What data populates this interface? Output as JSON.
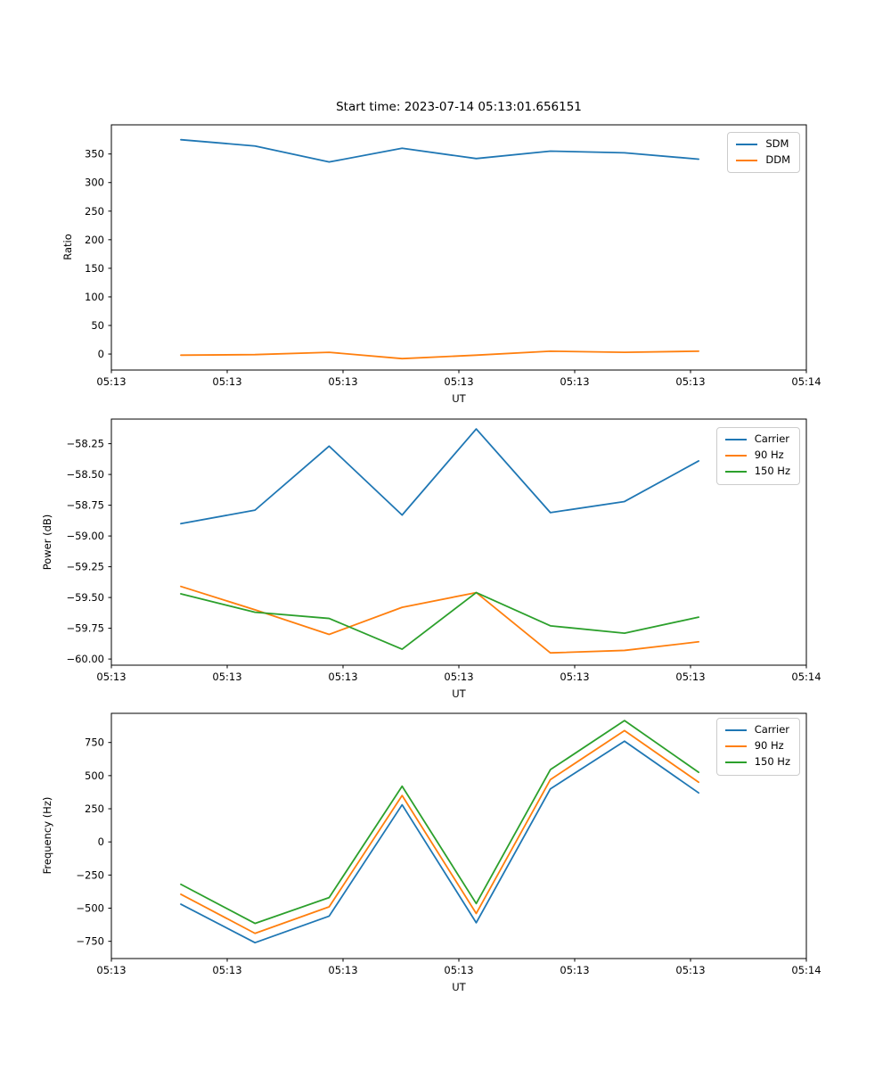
{
  "figure": {
    "title": "Start time: 2023-07-14 05:13:01.656151",
    "background": "#ffffff",
    "axis_color": "#000000",
    "tick_label_color": "#000000"
  },
  "chart_data": [
    {
      "type": "line",
      "title": "Start time: 2023-07-14 05:13:01.656151",
      "xlabel": "UT",
      "ylabel": "Ratio",
      "grid": false,
      "legend_position": "top-right",
      "x_seconds": [
        6.0,
        12.4,
        18.8,
        25.1,
        31.5,
        37.9,
        44.3,
        50.7
      ],
      "xlim_seconds": [
        0,
        60
      ],
      "xtick_seconds": [
        0,
        10,
        20,
        30,
        40,
        50,
        60
      ],
      "xtick_labels": [
        "05:13",
        "05:13",
        "05:13",
        "05:13",
        "05:13",
        "05:13",
        "05:14"
      ],
      "ylim": [
        -28,
        401
      ],
      "yticks": [
        {
          "v": 0,
          "label": "0"
        },
        {
          "v": 50,
          "label": "50"
        },
        {
          "v": 100,
          "label": "100"
        },
        {
          "v": 150,
          "label": "150"
        },
        {
          "v": 200,
          "label": "200"
        },
        {
          "v": 250,
          "label": "250"
        },
        {
          "v": 300,
          "label": "300"
        },
        {
          "v": 350,
          "label": "350"
        }
      ],
      "series": [
        {
          "name": "SDM",
          "color": "#1f77b4",
          "values": [
            375,
            364,
            336,
            360,
            342,
            355,
            352,
            341
          ]
        },
        {
          "name": "DDM",
          "color": "#ff7f0e",
          "values": [
            -2,
            -1,
            3,
            -8,
            -2,
            5,
            3,
            5
          ]
        }
      ]
    },
    {
      "type": "line",
      "title": "",
      "xlabel": "UT",
      "ylabel": "Power (dB)",
      "grid": false,
      "legend_position": "top-right",
      "x_seconds": [
        6.0,
        12.4,
        18.8,
        25.1,
        31.5,
        37.9,
        44.3,
        50.7
      ],
      "xlim_seconds": [
        0,
        60
      ],
      "xtick_seconds": [
        0,
        10,
        20,
        30,
        40,
        50,
        60
      ],
      "xtick_labels": [
        "05:13",
        "05:13",
        "05:13",
        "05:13",
        "05:13",
        "05:13",
        "05:14"
      ],
      "ylim": [
        -60.05,
        -58.05
      ],
      "yticks": [
        {
          "v": -58.25,
          "label": "−58.25"
        },
        {
          "v": -58.5,
          "label": "−58.50"
        },
        {
          "v": -58.75,
          "label": "−58.75"
        },
        {
          "v": -59.0,
          "label": "−59.00"
        },
        {
          "v": -59.25,
          "label": "−59.25"
        },
        {
          "v": -59.5,
          "label": "−59.50"
        },
        {
          "v": -59.75,
          "label": "−59.75"
        },
        {
          "v": -60.0,
          "label": "−60.00"
        }
      ],
      "series": [
        {
          "name": "Carrier",
          "color": "#1f77b4",
          "values": [
            -58.9,
            -58.79,
            -58.27,
            -58.83,
            -58.13,
            -58.81,
            -58.72,
            -58.39
          ]
        },
        {
          "name": "90 Hz",
          "color": "#ff7f0e",
          "values": [
            -59.41,
            -59.6,
            -59.8,
            -59.58,
            -59.46,
            -59.95,
            -59.93,
            -59.86
          ]
        },
        {
          "name": "150 Hz",
          "color": "#2ca02c",
          "values": [
            -59.47,
            -59.62,
            -59.67,
            -59.92,
            -59.46,
            -59.73,
            -59.79,
            -59.66
          ]
        }
      ]
    },
    {
      "type": "line",
      "title": "",
      "xlabel": "UT",
      "ylabel": "Frequency (Hz)",
      "grid": false,
      "legend_position": "top-right",
      "x_seconds": [
        6.0,
        12.4,
        18.8,
        25.1,
        31.5,
        37.9,
        44.3,
        50.7
      ],
      "xlim_seconds": [
        0,
        60
      ],
      "xtick_seconds": [
        0,
        10,
        20,
        30,
        40,
        50,
        60
      ],
      "xtick_labels": [
        "05:13",
        "05:13",
        "05:13",
        "05:13",
        "05:13",
        "05:13",
        "05:14"
      ],
      "ylim": [
        -880,
        970
      ],
      "yticks": [
        {
          "v": 750,
          "label": "750"
        },
        {
          "v": 500,
          "label": "500"
        },
        {
          "v": 250,
          "label": "250"
        },
        {
          "v": 0,
          "label": "0"
        },
        {
          "v": -250,
          "label": "−250"
        },
        {
          "v": -500,
          "label": "−500"
        },
        {
          "v": -750,
          "label": "−750"
        }
      ],
      "series": [
        {
          "name": "Carrier",
          "color": "#1f77b4",
          "values": [
            -470,
            -760,
            -560,
            280,
            -610,
            400,
            760,
            370
          ]
        },
        {
          "name": "90 Hz",
          "color": "#ff7f0e",
          "values": [
            -395,
            -690,
            -490,
            350,
            -540,
            470,
            840,
            450
          ]
        },
        {
          "name": "150 Hz",
          "color": "#2ca02c",
          "values": [
            -320,
            -615,
            -420,
            420,
            -465,
            545,
            915,
            525
          ]
        }
      ]
    }
  ]
}
